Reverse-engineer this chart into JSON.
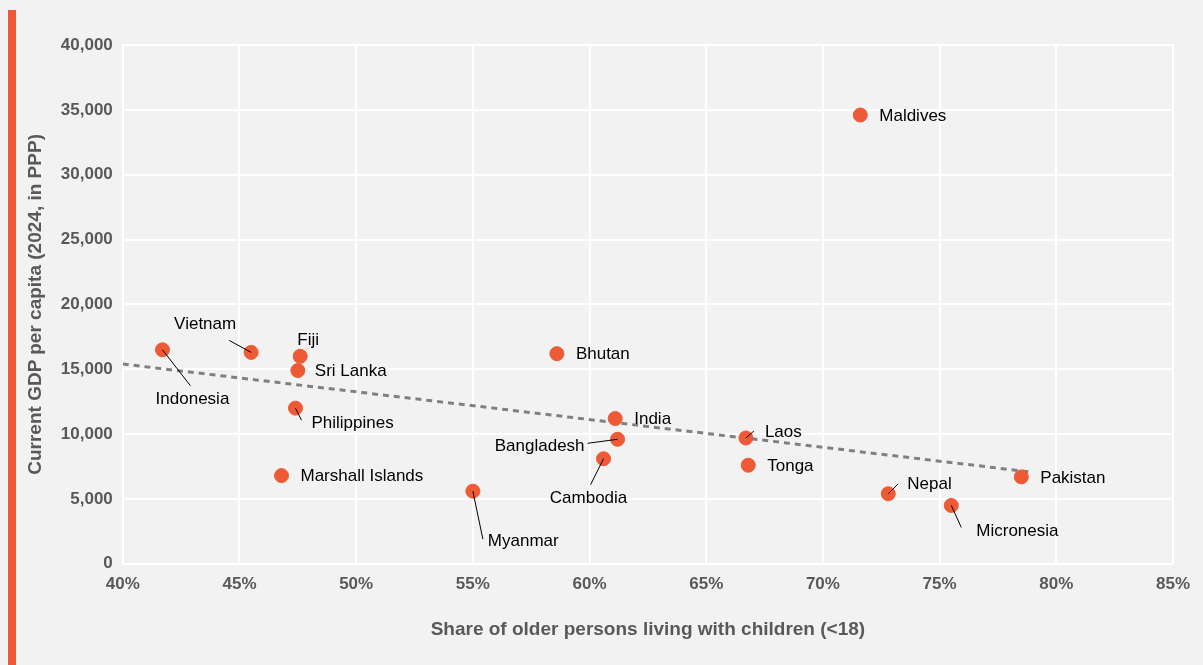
{
  "chart_data": {
    "type": "scatter",
    "xlabel": "Share of older persons living with children (<18)",
    "ylabel": "Current GDP per capita (2024, in PPP)",
    "xlim": [
      40,
      85
    ],
    "xticks": [
      {
        "value": 40,
        "label": "40%"
      },
      {
        "value": 45,
        "label": "45%"
      },
      {
        "value": 50,
        "label": "50%"
      },
      {
        "value": 55,
        "label": "55%"
      },
      {
        "value": 60,
        "label": "60%"
      },
      {
        "value": 65,
        "label": "65%"
      },
      {
        "value": 70,
        "label": "70%"
      },
      {
        "value": 75,
        "label": "75%"
      },
      {
        "value": 80,
        "label": "80%"
      },
      {
        "value": 85,
        "label": "85%"
      }
    ],
    "ylim": [
      0,
      40000
    ],
    "yticks": [
      {
        "value": 0,
        "label": "0"
      },
      {
        "value": 5000,
        "label": "5,000"
      },
      {
        "value": 10000,
        "label": "10,000"
      },
      {
        "value": 15000,
        "label": "15,000"
      },
      {
        "value": 20000,
        "label": "20,000"
      },
      {
        "value": 25000,
        "label": "25,000"
      },
      {
        "value": 30000,
        "label": "30,000"
      },
      {
        "value": 35000,
        "label": "35,000"
      },
      {
        "value": 40000,
        "label": "40,000"
      }
    ],
    "grid": true,
    "legend": false,
    "marker": "circle",
    "series": [
      {
        "type": "scatter",
        "color": "#ee5a35",
        "x": [
          41.7,
          45.5,
          47.6,
          47.5,
          47.4,
          46.8,
          55.0,
          58.6,
          61.1,
          61.2,
          60.6,
          66.7,
          66.8,
          71.6,
          72.8,
          75.5,
          78.5
        ],
        "values": [
          16500,
          16300,
          16000,
          14900,
          12000,
          6800,
          5600,
          16200,
          11200,
          9600,
          8100,
          9700,
          7600,
          34600,
          5400,
          4500,
          6700
        ]
      },
      {
        "type": "line",
        "color": "#808080",
        "line_style": "dashed",
        "marker": "none",
        "x": [
          40,
          78.8
        ],
        "values": [
          15400,
          7100
        ]
      }
    ],
    "annotations": [
      {
        "text": "Indonesia",
        "x": 41.7,
        "y": 16500
      },
      {
        "text": "Vietnam",
        "x": 45.5,
        "y": 16300
      },
      {
        "text": "Fiji",
        "x": 47.6,
        "y": 16000
      },
      {
        "text": "Sri Lanka",
        "x": 47.5,
        "y": 14900
      },
      {
        "text": "Philippines",
        "x": 47.4,
        "y": 12000
      },
      {
        "text": "Marshall Islands",
        "x": 46.8,
        "y": 6800
      },
      {
        "text": "Myanmar",
        "x": 55.0,
        "y": 5600
      },
      {
        "text": "Bhutan",
        "x": 58.6,
        "y": 16200
      },
      {
        "text": "India",
        "x": 61.1,
        "y": 11200
      },
      {
        "text": "Bangladesh",
        "x": 61.2,
        "y": 9600
      },
      {
        "text": "Cambodia",
        "x": 60.6,
        "y": 8100
      },
      {
        "text": "Laos",
        "x": 66.7,
        "y": 9700
      },
      {
        "text": "Tonga",
        "x": 66.8,
        "y": 7600
      },
      {
        "text": "Maldives",
        "x": 71.6,
        "y": 34600
      },
      {
        "text": "Nepal",
        "x": 72.8,
        "y": 5400
      },
      {
        "text": "Micronesia",
        "x": 75.5,
        "y": 4500
      },
      {
        "text": "Pakistan",
        "x": 78.5,
        "y": 6700
      }
    ]
  }
}
